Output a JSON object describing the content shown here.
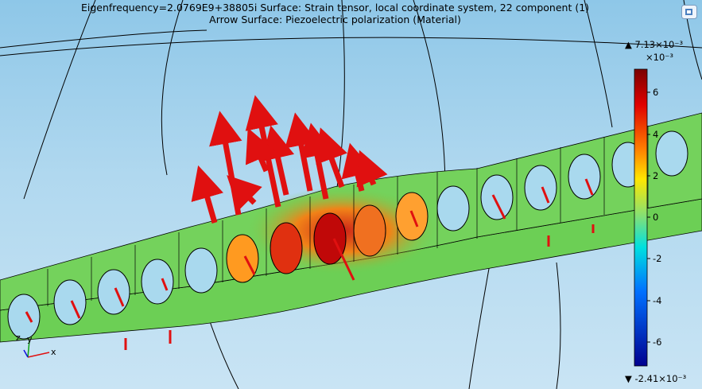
{
  "plot_title": {
    "line1": "Eigenfrequency=2.0769E9+38805i   Surface: Strain tensor, local coordinate system, 22 component (1)",
    "line2": "Arrow Surface: Piezoelectric polarization (Material)"
  },
  "colorbar": {
    "max_label": "▲ 7.13×10⁻³",
    "unit": "×10⁻³",
    "min_label": "▼ -2.41×10⁻³",
    "ticks": [
      "6",
      "4",
      "2",
      "0",
      "-2",
      "-4",
      "-6"
    ]
  },
  "axes_triad": {
    "x": "x",
    "y": "y",
    "z": "z"
  },
  "icons": {
    "view": "view-reset-icon"
  }
}
